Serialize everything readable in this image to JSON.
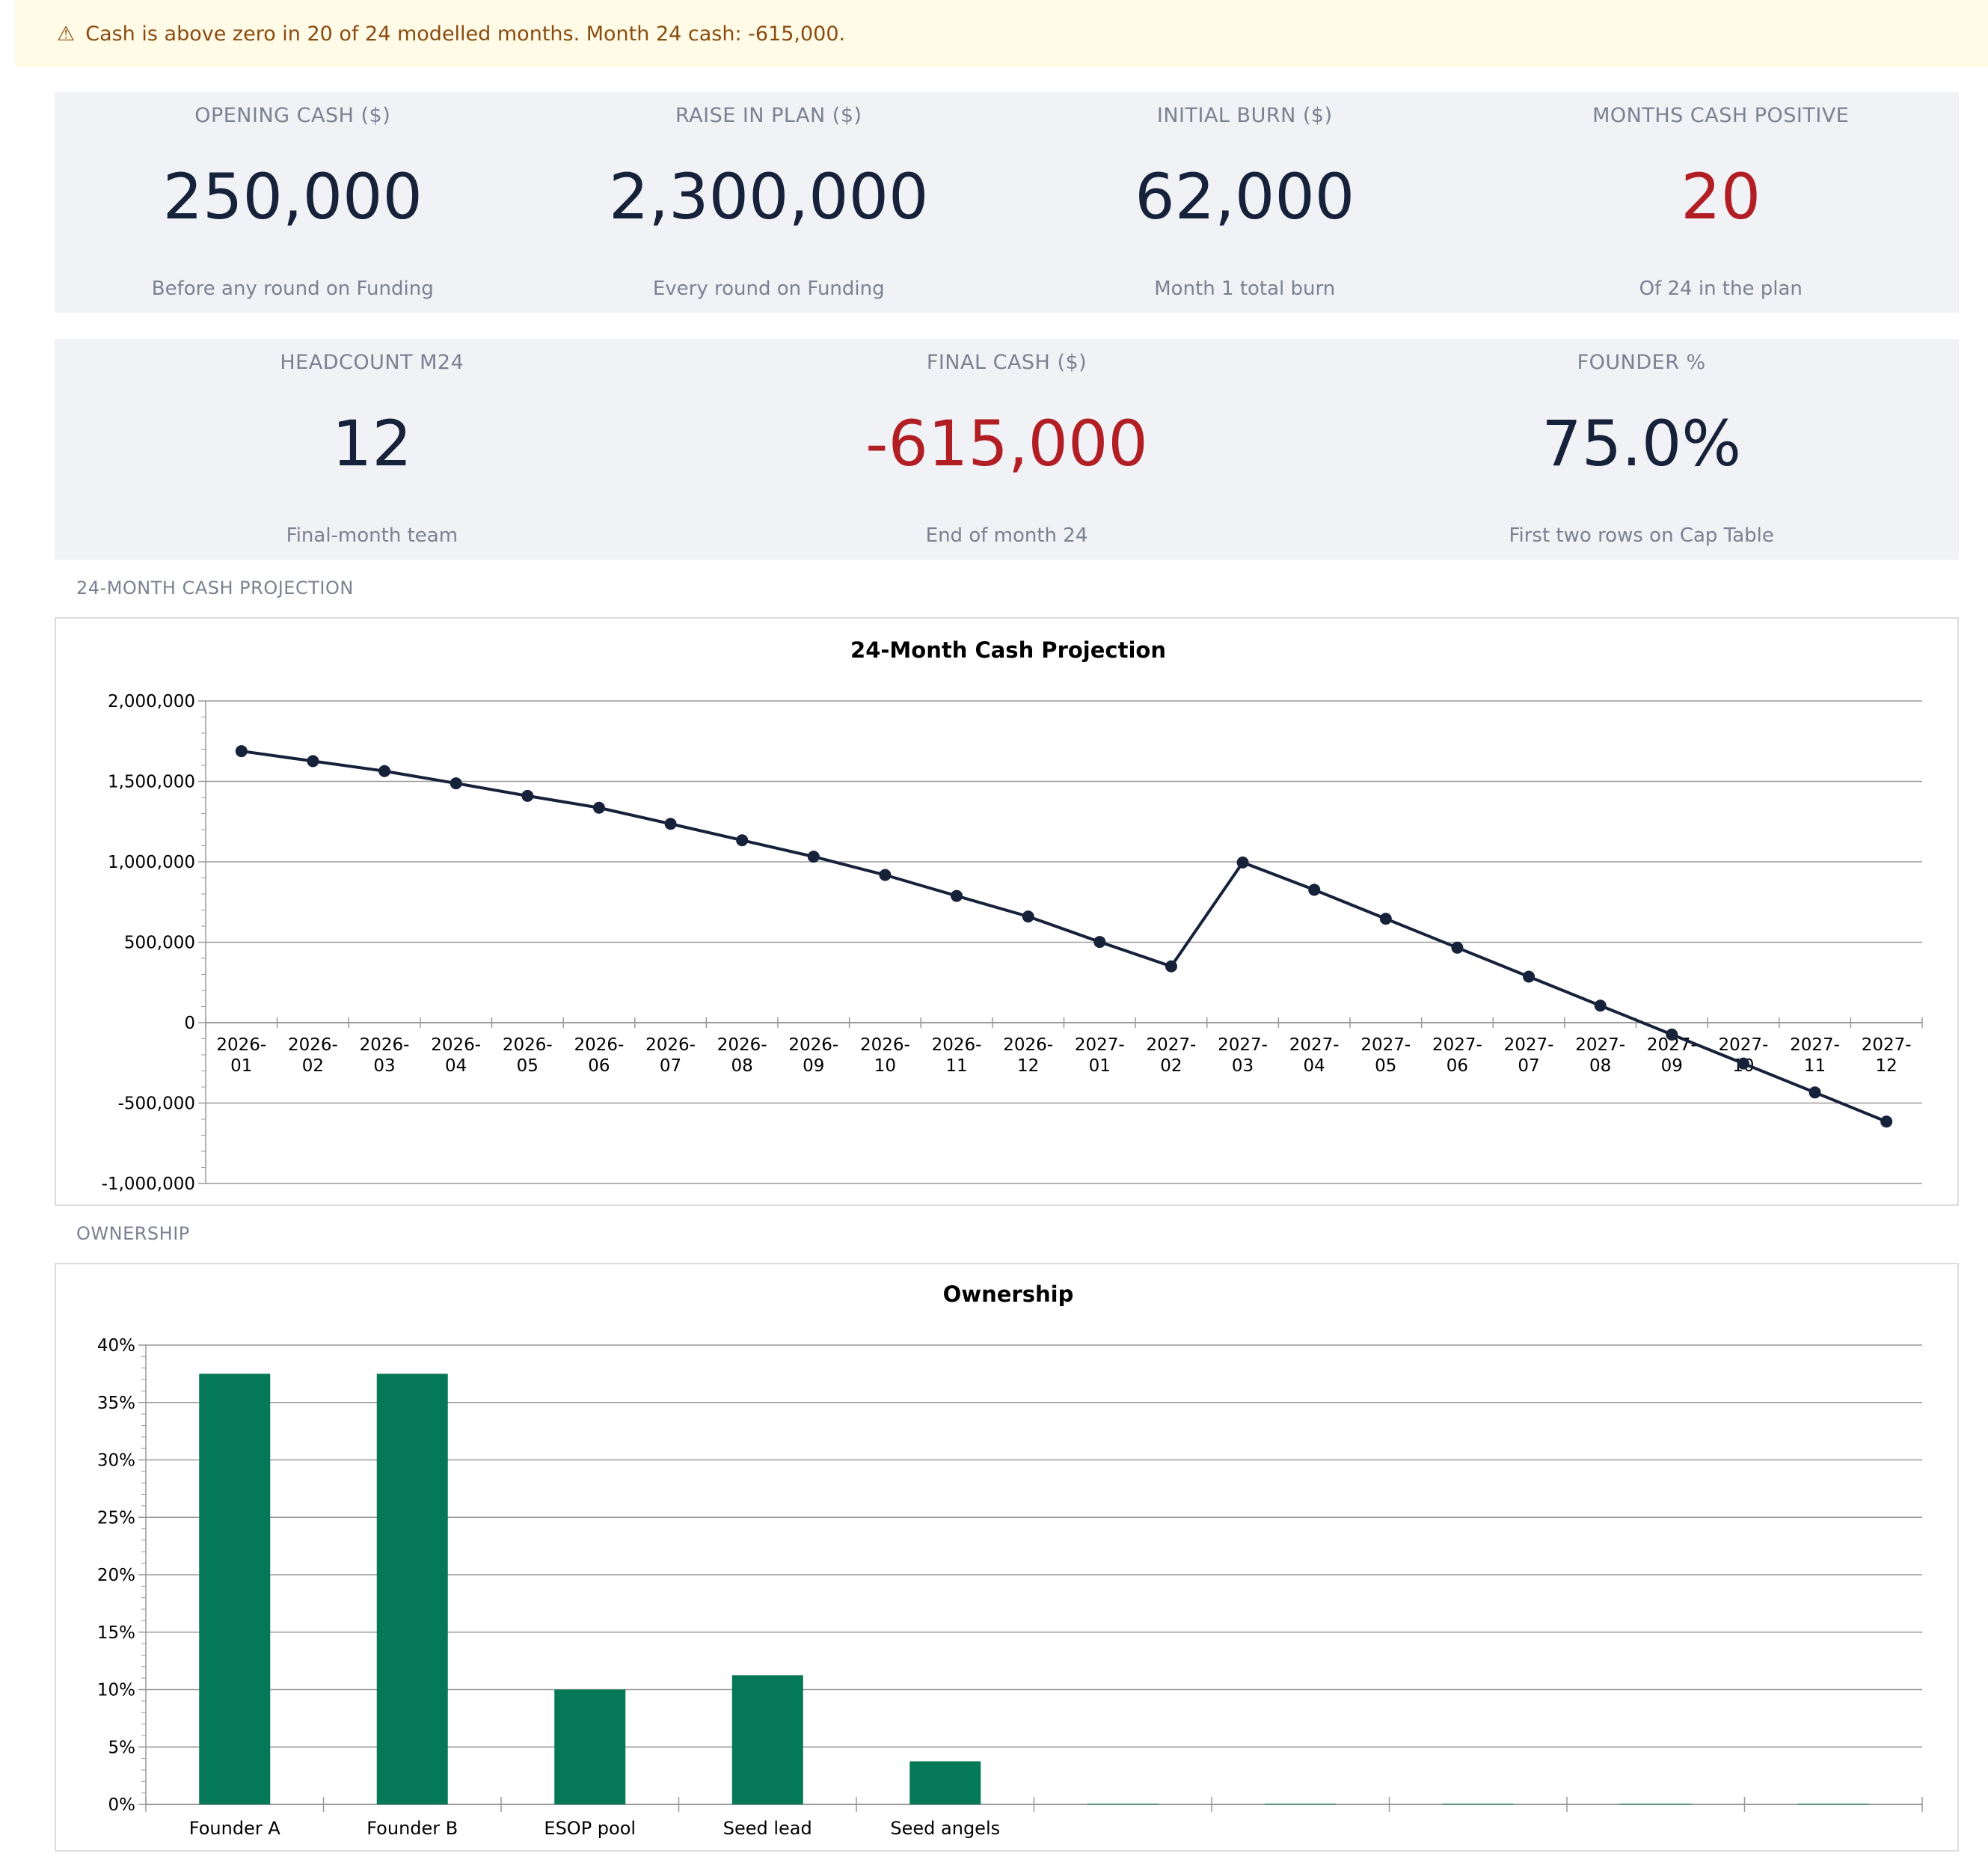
{
  "banner": {
    "icon": "warning-icon",
    "text": "Cash is above zero in 20 of 24 modelled months. Month 24 cash: -615,000."
  },
  "kpis_row1": [
    {
      "label": "OPENING CASH ($)",
      "value": "250,000",
      "sub": "Before any round on Funding",
      "negative": false
    },
    {
      "label": "RAISE IN PLAN ($)",
      "value": "2,300,000",
      "sub": "Every round on Funding",
      "negative": false
    },
    {
      "label": "INITIAL BURN ($)",
      "value": "62,000",
      "sub": "Month 1 total burn",
      "negative": false
    },
    {
      "label": "MONTHS CASH POSITIVE",
      "value": "20",
      "sub": "Of 24 in the plan",
      "negative": true
    }
  ],
  "kpis_row2": [
    {
      "label": "HEADCOUNT M24",
      "value": "12",
      "sub": "Final-month team",
      "negative": false
    },
    {
      "label": "FINAL CASH ($)",
      "value": "-615,000",
      "sub": "End of month 24",
      "negative": true
    },
    {
      "label": "FOUNDER %",
      "value": "75.0%",
      "sub": "First two rows on Cap Table",
      "negative": false
    }
  ],
  "sections": {
    "cash": "24-MONTH CASH PROJECTION",
    "ownership": "OWNERSHIP"
  },
  "colors": {
    "line": "#16213a",
    "bar": "#047857",
    "negative": "#b11e24",
    "grid": "#999999"
  },
  "chart_data": [
    {
      "type": "line",
      "title": "24-Month Cash Projection",
      "x": [
        "2026-01",
        "2026-02",
        "2026-03",
        "2026-04",
        "2026-05",
        "2026-06",
        "2026-07",
        "2026-08",
        "2026-09",
        "2026-10",
        "2026-11",
        "2026-12",
        "2027-01",
        "2027-02",
        "2027-03",
        "2027-04",
        "2027-05",
        "2027-06",
        "2027-07",
        "2027-08",
        "2027-09",
        "2027-10",
        "2027-11",
        "2027-12"
      ],
      "values": [
        1688000,
        1626000,
        1564000,
        1488000,
        1410000,
        1336000,
        1236000,
        1134000,
        1032000,
        918000,
        788000,
        660000,
        502000,
        350000,
        996000,
        826000,
        646000,
        466000,
        286000,
        106000,
        -74000,
        -254000,
        -434000,
        -615000
      ],
      "yticks": [
        -1000000,
        -500000,
        0,
        500000,
        1000000,
        1500000,
        2000000
      ],
      "ytick_labels": [
        "-1,000,000",
        "-500,000",
        "0",
        "500,000",
        "1,000,000",
        "1,500,000",
        "2,000,000"
      ],
      "ylim": [
        -1000000,
        2000000
      ],
      "xlabel": "",
      "ylabel": "",
      "grid": true
    },
    {
      "type": "bar",
      "title": "Ownership",
      "categories": [
        "Founder A",
        "Founder B",
        "ESOP pool",
        "Seed lead",
        "Seed angels",
        "",
        "",
        "",
        "",
        ""
      ],
      "values": [
        37.5,
        37.5,
        10.0,
        11.25,
        3.75,
        0,
        0,
        0,
        0,
        0
      ],
      "yticks": [
        0,
        5,
        10,
        15,
        20,
        25,
        30,
        35,
        40
      ],
      "ytick_labels": [
        "0%",
        "5%",
        "10%",
        "15%",
        "20%",
        "25%",
        "30%",
        "35%",
        "40%"
      ],
      "ylim": [
        0,
        40
      ],
      "xlabel": "",
      "ylabel": "",
      "grid": true
    }
  ]
}
